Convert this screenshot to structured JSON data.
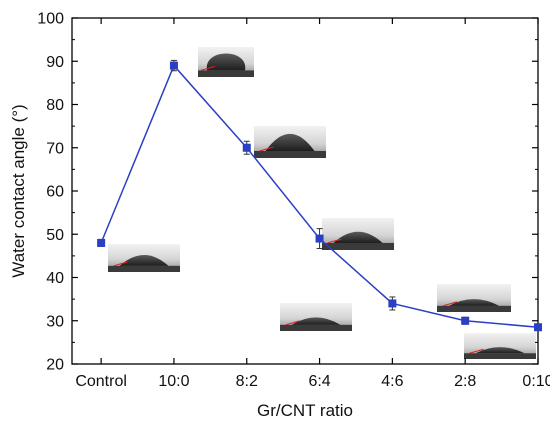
{
  "chart_data": {
    "type": "line",
    "title": "",
    "xlabel": "Gr/CNT ratio",
    "ylabel": "Water contact angle (°)",
    "categories": [
      "Control",
      "10:0",
      "8:2",
      "6:4",
      "4:6",
      "2:8",
      "0:10"
    ],
    "series": [
      {
        "values": [
          48,
          89,
          70,
          49,
          34,
          30,
          28.5
        ],
        "errors": [
          0.8,
          1.2,
          1.5,
          2.3,
          1.5,
          0.8,
          0.6
        ],
        "color": "#2b3fc4"
      }
    ],
    "ylim": [
      20,
      100
    ],
    "yticks": [
      20,
      30,
      40,
      50,
      60,
      70,
      80,
      90,
      100
    ],
    "grid": false,
    "legend": "none",
    "insets": [
      {
        "category": "Control",
        "image": "droplet-photo",
        "contact_angle": 48
      },
      {
        "category": "10:0",
        "image": "droplet-photo",
        "contact_angle": 89
      },
      {
        "category": "8:2",
        "image": "droplet-photo",
        "contact_angle": 70
      },
      {
        "category": "6:4",
        "image": "droplet-photo",
        "contact_angle": 49
      },
      {
        "category": "4:6",
        "image": "droplet-photo",
        "contact_angle": 34
      },
      {
        "category": "2:8",
        "image": "droplet-photo",
        "contact_angle": 30
      },
      {
        "category": "0:10",
        "image": "droplet-photo",
        "contact_angle": 28.5
      }
    ]
  }
}
